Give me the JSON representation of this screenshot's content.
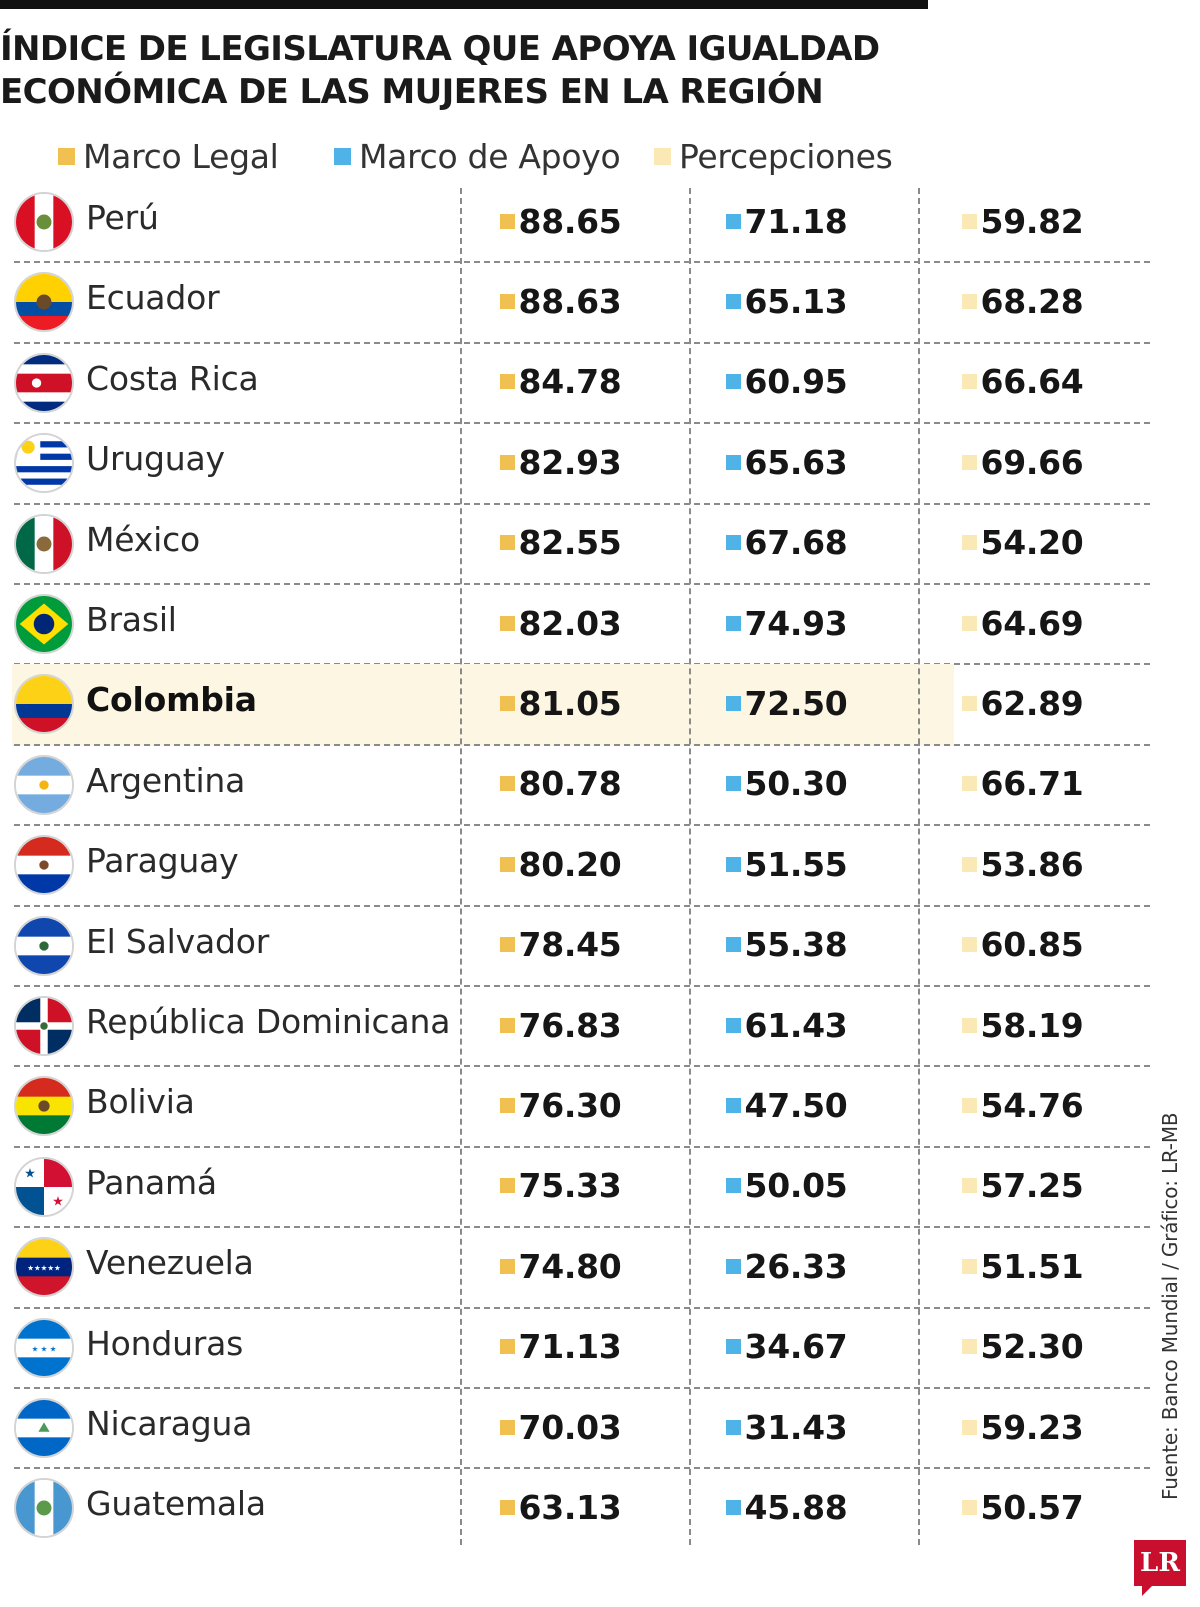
{
  "title": "ÍNDICE DE LEGISLATURA QUE APOYA IGUALDAD ECONÓMICA DE LAS MUJERES EN LA REGIÓN",
  "legend": [
    {
      "label": "Marco Legal",
      "color": "#f0c050"
    },
    {
      "label": "Marco de Apoyo",
      "color": "#4fb3e8"
    },
    {
      "label": "Percepciones",
      "color": "#fbe9b5"
    }
  ],
  "source": "Fuente: Banco Mundial / Gráfico: LR-MB",
  "logo": "LR",
  "highlight_row": "Colombia",
  "chart_data": {
    "type": "table",
    "title": "ÍNDICE DE LEGISLATURA QUE APOYA IGUALDAD ECONÓMICA DE LAS MUJERES EN LA REGIÓN",
    "columns": [
      "Marco Legal",
      "Marco de Apoyo",
      "Percepciones"
    ],
    "rows": [
      {
        "country": "Perú",
        "flag": "peru-flag-icon",
        "values": [
          "88.65",
          "71.18",
          "59.82"
        ]
      },
      {
        "country": "Ecuador",
        "flag": "ecuador-flag-icon",
        "values": [
          "88.63",
          "65.13",
          "68.28"
        ]
      },
      {
        "country": "Costa Rica",
        "flag": "costa-rica-flag-icon",
        "values": [
          "84.78",
          "60.95",
          "66.64"
        ]
      },
      {
        "country": "Uruguay",
        "flag": "uruguay-flag-icon",
        "values": [
          "82.93",
          "65.63",
          "69.66"
        ]
      },
      {
        "country": "México",
        "flag": "mexico-flag-icon",
        "values": [
          "82.55",
          "67.68",
          "54.20"
        ]
      },
      {
        "country": "Brasil",
        "flag": "brasil-flag-icon",
        "values": [
          "82.03",
          "74.93",
          "64.69"
        ]
      },
      {
        "country": "Colombia",
        "flag": "colombia-flag-icon",
        "values": [
          "81.05",
          "72.50",
          "62.89"
        ]
      },
      {
        "country": "Argentina",
        "flag": "argentina-flag-icon",
        "values": [
          "80.78",
          "50.30",
          "66.71"
        ]
      },
      {
        "country": "Paraguay",
        "flag": "paraguay-flag-icon",
        "values": [
          "80.20",
          "51.55",
          "53.86"
        ]
      },
      {
        "country": "El Salvador",
        "flag": "el-salvador-flag-icon",
        "values": [
          "78.45",
          "55.38",
          "60.85"
        ]
      },
      {
        "country": "República Dominicana",
        "flag": "republica-dominicana-flag-icon",
        "values": [
          "76.83",
          "61.43",
          "58.19"
        ]
      },
      {
        "country": "Bolivia",
        "flag": "bolivia-flag-icon",
        "values": [
          "76.30",
          "47.50",
          "54.76"
        ]
      },
      {
        "country": "Panamá",
        "flag": "panama-flag-icon",
        "values": [
          "75.33",
          "50.05",
          "57.25"
        ]
      },
      {
        "country": "Venezuela",
        "flag": "venezuela-flag-icon",
        "values": [
          "74.80",
          "26.33",
          "51.51"
        ]
      },
      {
        "country": "Honduras",
        "flag": "honduras-flag-icon",
        "values": [
          "71.13",
          "34.67",
          "52.30"
        ]
      },
      {
        "country": "Nicaragua",
        "flag": "nicaragua-flag-icon",
        "values": [
          "70.03",
          "31.43",
          "59.23"
        ]
      },
      {
        "country": "Guatemala",
        "flag": "guatemala-flag-icon",
        "values": [
          "63.13",
          "45.88",
          "50.57"
        ]
      }
    ]
  }
}
